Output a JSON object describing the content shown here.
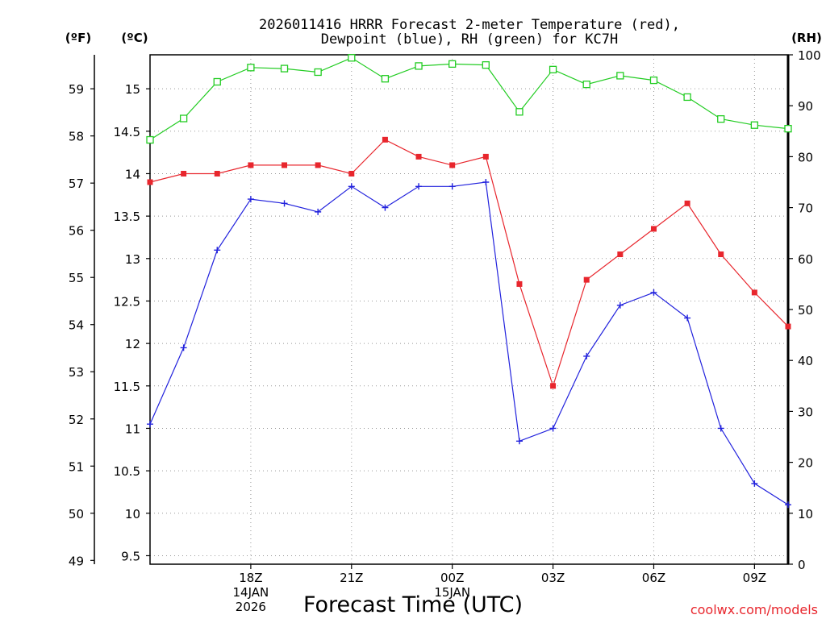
{
  "chart_data": {
    "type": "line",
    "title_line1": "2026011416 HRRR Forecast 2-meter Temperature (red),",
    "title_line2": "Dewpoint (blue), RH (green) for KC7H",
    "xlabel": "Forecast Time (UTC)",
    "watermark": "coolwx.com/models",
    "left_unit_f": "(ºF)",
    "left_unit_c": "(ºC)",
    "right_unit": "(RH)",
    "x_hours": [
      15,
      16,
      17,
      18,
      19,
      20,
      21,
      22,
      23,
      24,
      25,
      26,
      27,
      28,
      29,
      30,
      31,
      32,
      33,
      34
    ],
    "xlim": [
      15,
      34
    ],
    "x_ticks": [
      {
        "h": 18,
        "label": "18Z",
        "sub1": "14JAN",
        "sub2": "2026"
      },
      {
        "h": 21,
        "label": "21Z",
        "sub1": "",
        "sub2": ""
      },
      {
        "h": 24,
        "label": "00Z",
        "sub1": "15JAN",
        "sub2": ""
      },
      {
        "h": 27,
        "label": "03Z",
        "sub1": "",
        "sub2": ""
      },
      {
        "h": 30,
        "label": "06Z",
        "sub1": "",
        "sub2": ""
      },
      {
        "h": 33,
        "label": "09Z",
        "sub1": "",
        "sub2": ""
      }
    ],
    "c_axis": {
      "ylim": [
        9.4,
        15.4
      ],
      "ticks": [
        "9.5",
        "10",
        "10.5",
        "11",
        "11.5",
        "12",
        "12.5",
        "13",
        "13.5",
        "14",
        "14.5",
        "15"
      ]
    },
    "f_axis": {
      "ylim": [
        48.92,
        59.72
      ],
      "ticks": [
        "49",
        "50",
        "51",
        "52",
        "53",
        "54",
        "55",
        "56",
        "57",
        "58",
        "59"
      ]
    },
    "rh_axis": {
      "ylim": [
        0,
        100
      ],
      "ticks": [
        "0",
        "10",
        "20",
        "30",
        "40",
        "50",
        "60",
        "70",
        "80",
        "90",
        "100"
      ]
    },
    "series": [
      {
        "name": "Temperature",
        "color": "#e8262d",
        "marker": "filled-square",
        "axis": "c",
        "values": [
          13.9,
          14.0,
          14.0,
          14.1,
          14.1,
          14.1,
          14.0,
          14.4,
          14.2,
          14.1,
          14.2,
          12.7,
          11.5,
          12.75,
          13.05,
          13.35,
          13.65,
          13.05,
          12.6,
          12.2
        ]
      },
      {
        "name": "Dewpoint",
        "color": "#2222dd",
        "marker": "plus",
        "axis": "c",
        "values": [
          11.05,
          11.95,
          13.1,
          13.7,
          13.65,
          13.55,
          13.85,
          13.6,
          13.85,
          13.85,
          13.9,
          10.85,
          11.0,
          11.85,
          12.45,
          12.6,
          12.3,
          11.0,
          10.35,
          10.1
        ]
      },
      {
        "name": "RH",
        "color": "#22cc22",
        "marker": "open-square",
        "axis": "rh",
        "values": [
          83.3,
          87.5,
          94.7,
          97.5,
          97.3,
          96.6,
          99.4,
          95.3,
          97.8,
          98.2,
          98.0,
          88.8,
          97.1,
          94.2,
          95.9,
          95.0,
          91.7,
          87.4,
          86.2,
          85.5
        ]
      }
    ]
  }
}
